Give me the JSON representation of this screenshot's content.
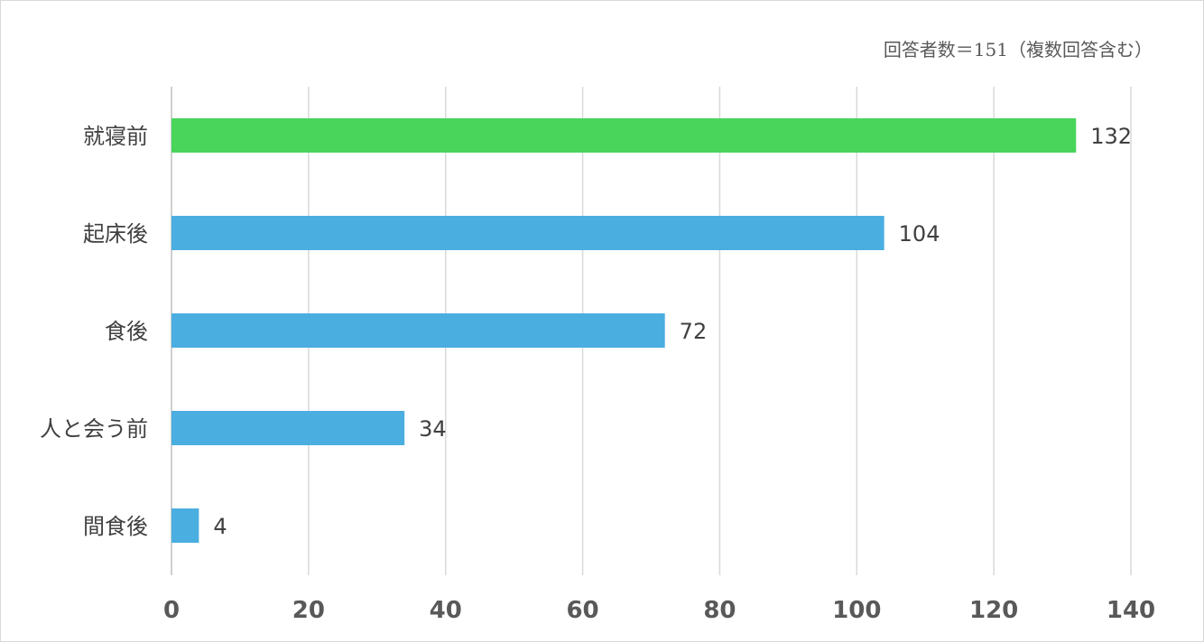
{
  "note": "回答者数＝151（複数回答含む）",
  "chart_data": {
    "type": "bar",
    "orientation": "horizontal",
    "categories": [
      "就寝前",
      "起床後",
      "食後",
      "人と会う前",
      "間食後"
    ],
    "values": [
      132,
      104,
      72,
      34,
      4
    ],
    "xlim": [
      0,
      140
    ],
    "xticks": [
      0,
      20,
      40,
      60,
      80,
      100,
      120,
      140
    ],
    "grid": true,
    "colors": {
      "highlight": "#49d45c",
      "default": "#4aaee0",
      "grid": "#d9d9d9"
    },
    "highlight_index": 0,
    "data_labels": true
  }
}
